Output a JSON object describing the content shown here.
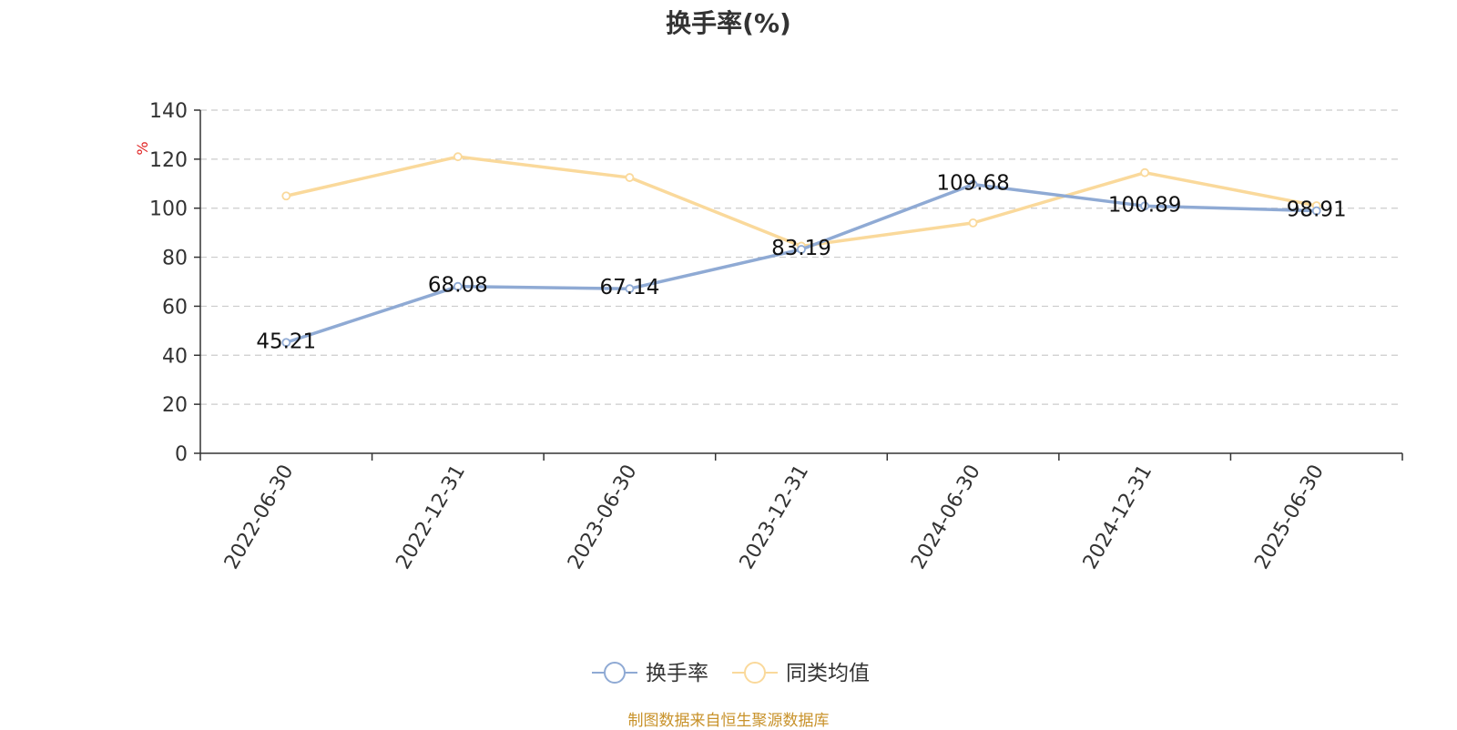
{
  "title": "换手率(%)",
  "source": "制图数据来自恒生聚源数据库",
  "colors": {
    "series_turnover": "#8faad4",
    "series_peer": "#fad99b",
    "axis": "#333333",
    "grid": "#cccccc",
    "unit": "#e02020",
    "source": "#c8922a"
  },
  "chart_data": {
    "type": "line",
    "title": "换手率(%)",
    "ylabel": "%",
    "xlabel": "",
    "ylim": [
      0,
      140
    ],
    "yticks": [
      0,
      20,
      40,
      60,
      80,
      100,
      120,
      140
    ],
    "grid": true,
    "legend_position": "bottom",
    "categories": [
      "2022-06-30",
      "2022-12-31",
      "2023-06-30",
      "2023-12-31",
      "2024-06-30",
      "2024-12-31",
      "2025-06-30"
    ],
    "series": [
      {
        "name": "换手率",
        "values": [
          45.21,
          68.08,
          67.14,
          83.19,
          109.68,
          100.89,
          98.91
        ],
        "labels": [
          "45.21",
          "68.08",
          "67.14",
          "83.19",
          "109.68",
          "100.89",
          "98.91"
        ],
        "color": "#8faad4"
      },
      {
        "name": "同类均值",
        "values": [
          105,
          121,
          112.5,
          84.5,
          94,
          114.5,
          101
        ],
        "color": "#fad99b"
      }
    ]
  }
}
